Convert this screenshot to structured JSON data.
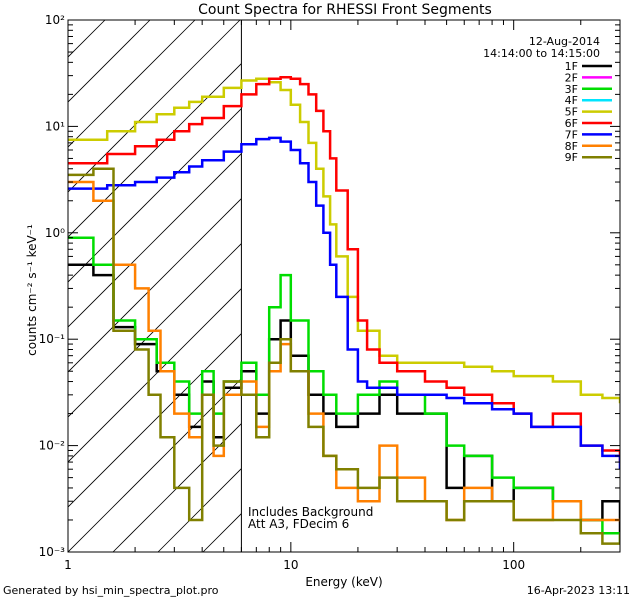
{
  "chart_data": {
    "type": "line",
    "title": "Count Spectra for RHESSI Front Segments",
    "xlabel": "Energy (keV)",
    "ylabel": "counts cm⁻² s⁻¹ keV⁻¹",
    "xscale": "log",
    "yscale": "log",
    "xlim": [
      1,
      300
    ],
    "ylim": [
      0.001,
      100
    ],
    "x_ticks": [
      {
        "value": 1,
        "label": "1"
      },
      {
        "value": 10,
        "label": "10"
      },
      {
        "value": 100,
        "label": "100"
      }
    ],
    "y_ticks": [
      {
        "value": 0.001,
        "label": "10⁻³"
      },
      {
        "value": 0.01,
        "label": "10⁻²"
      },
      {
        "value": 0.1,
        "label": "10⁻¹"
      },
      {
        "value": 1,
        "label": "10⁰"
      },
      {
        "value": 10,
        "label": "10¹"
      },
      {
        "value": 100,
        "label": "10²"
      }
    ],
    "legend_position": "top-right",
    "date": "12-Aug-2014",
    "time_range": "14:14:00 to 14:15:00",
    "annotation_lines": [
      "Includes Background",
      "Att A3, FDecim  6"
    ],
    "hatched_region_xmax": 6,
    "footer_left": "Generated by hsi_min_spectra_plot.pro",
    "footer_right": "16-Apr-2023 13:11",
    "series": [
      {
        "name": "1F",
        "color": "#000000",
        "x": [
          1.0,
          1.3,
          1.6,
          2.0,
          2.5,
          3.0,
          3.5,
          4.0,
          4.5,
          5.0,
          6.0,
          7.0,
          8.0,
          9.0,
          10.0,
          12,
          14,
          16,
          20,
          25,
          30,
          40,
          50,
          60,
          80,
          100,
          150,
          200,
          250,
          300
        ],
        "y": [
          0.5,
          0.4,
          0.13,
          0.09,
          0.05,
          0.03,
          0.015,
          0.04,
          0.012,
          0.035,
          0.05,
          0.02,
          0.1,
          0.15,
          0.07,
          0.03,
          0.02,
          0.015,
          0.02,
          0.03,
          0.02,
          0.02,
          0.004,
          0.008,
          0.003,
          0.004,
          0.003,
          0.002,
          0.003,
          0.0015
        ]
      },
      {
        "name": "2F",
        "color": "#ff00ff",
        "x": [],
        "y": []
      },
      {
        "name": "3F",
        "color": "#00dd00",
        "x": [
          1.0,
          1.3,
          1.6,
          2.0,
          2.5,
          3.0,
          3.5,
          4.0,
          4.5,
          5.0,
          6.0,
          7.0,
          8.0,
          9.0,
          10.0,
          12,
          14,
          16,
          20,
          25,
          30,
          40,
          50,
          60,
          80,
          100,
          150,
          200,
          250,
          300
        ],
        "y": [
          0.9,
          0.5,
          0.15,
          0.1,
          0.06,
          0.04,
          0.02,
          0.05,
          0.02,
          0.04,
          0.06,
          0.03,
          0.2,
          0.4,
          0.15,
          0.05,
          0.03,
          0.02,
          0.03,
          0.04,
          0.03,
          0.02,
          0.01,
          0.008,
          0.005,
          0.004,
          0.003,
          0.002,
          0.0015,
          0.0012
        ]
      },
      {
        "name": "4F",
        "color": "#00e5ff",
        "x": [],
        "y": []
      },
      {
        "name": "5F",
        "color": "#cccc00",
        "x": [
          1.0,
          1.5,
          2.0,
          2.5,
          3.0,
          3.5,
          4.0,
          5.0,
          6.0,
          7.0,
          8.0,
          9.0,
          10.0,
          11,
          12,
          13,
          14,
          15,
          16,
          18,
          20,
          25,
          30,
          40,
          50,
          60,
          80,
          100,
          150,
          200,
          250,
          300
        ],
        "y": [
          7.5,
          9.0,
          11,
          13,
          15,
          17,
          19,
          23,
          27,
          28,
          26,
          22,
          16,
          11,
          7,
          4,
          2.2,
          1.2,
          0.6,
          0.25,
          0.12,
          0.07,
          0.06,
          0.06,
          0.06,
          0.055,
          0.05,
          0.045,
          0.04,
          0.03,
          0.028,
          0.025
        ]
      },
      {
        "name": "6F",
        "color": "#ff0000",
        "x": [
          1.0,
          1.5,
          2.0,
          2.5,
          3.0,
          3.5,
          4.0,
          5.0,
          6.0,
          7.0,
          8.0,
          9.0,
          10.0,
          11,
          12,
          13,
          14,
          15,
          16,
          18,
          20,
          22,
          25,
          30,
          40,
          50,
          60,
          80,
          100,
          120,
          150,
          200,
          250,
          300
        ],
        "y": [
          4.5,
          5.5,
          6.5,
          7.5,
          9,
          10.5,
          12,
          15.5,
          20,
          25,
          28,
          29,
          28,
          25,
          20,
          14,
          9,
          5,
          2.5,
          0.7,
          0.15,
          0.08,
          0.06,
          0.05,
          0.04,
          0.035,
          0.03,
          0.025,
          0.02,
          0.015,
          0.02,
          0.01,
          0.009,
          0.007
        ]
      },
      {
        "name": "7F",
        "color": "#0000ff",
        "x": [
          1.0,
          1.5,
          2.0,
          2.5,
          3.0,
          3.5,
          4.0,
          5.0,
          6.0,
          7.0,
          8.0,
          9.0,
          10.0,
          11,
          12,
          13,
          14,
          15,
          16,
          18,
          20,
          22,
          25,
          30,
          40,
          50,
          60,
          80,
          100,
          120,
          150,
          200,
          250,
          300
        ],
        "y": [
          2.6,
          2.8,
          3.0,
          3.3,
          3.7,
          4.2,
          4.8,
          5.8,
          6.8,
          7.6,
          7.8,
          7.2,
          6,
          4.5,
          3,
          1.8,
          1,
          0.5,
          0.25,
          0.08,
          0.04,
          0.035,
          0.035,
          0.03,
          0.03,
          0.028,
          0.025,
          0.022,
          0.02,
          0.015,
          0.015,
          0.01,
          0.008,
          0.006
        ]
      },
      {
        "name": "8F",
        "color": "#ff8000",
        "x": [
          1.0,
          1.3,
          1.6,
          2.0,
          2.3,
          2.6,
          3.0,
          3.5,
          4.0,
          4.5,
          5.0,
          6.0,
          7.0,
          8.0,
          9.0,
          10.0,
          12,
          14,
          16,
          20,
          25,
          30,
          40,
          50,
          60,
          80,
          100,
          150,
          200,
          250,
          300
        ],
        "y": [
          3.0,
          2.0,
          0.5,
          0.3,
          0.12,
          0.05,
          0.02,
          0.012,
          0.03,
          0.008,
          0.03,
          0.04,
          0.015,
          0.05,
          0.09,
          0.05,
          0.02,
          0.008,
          0.004,
          0.003,
          0.01,
          0.005,
          0.003,
          0.002,
          0.004,
          0.003,
          0.002,
          0.003,
          0.002,
          0.002,
          0.002
        ]
      },
      {
        "name": "9F",
        "color": "#808000",
        "x": [
          1.0,
          1.3,
          1.6,
          2.0,
          2.3,
          2.6,
          3.0,
          3.5,
          4.0,
          4.5,
          5.0,
          6.0,
          7.0,
          8.0,
          9.0,
          10.0,
          12,
          14,
          16,
          20,
          25,
          30,
          40,
          50,
          60,
          80,
          100,
          150,
          200,
          250,
          300
        ],
        "y": [
          3.5,
          4.0,
          0.12,
          0.08,
          0.03,
          0.012,
          0.004,
          0.002,
          0.03,
          0.01,
          0.04,
          0.03,
          0.012,
          0.06,
          0.1,
          0.05,
          0.015,
          0.008,
          0.006,
          0.004,
          0.005,
          0.003,
          0.003,
          0.002,
          0.003,
          0.003,
          0.002,
          0.002,
          0.0015,
          0.0012,
          0.0015
        ]
      }
    ]
  }
}
